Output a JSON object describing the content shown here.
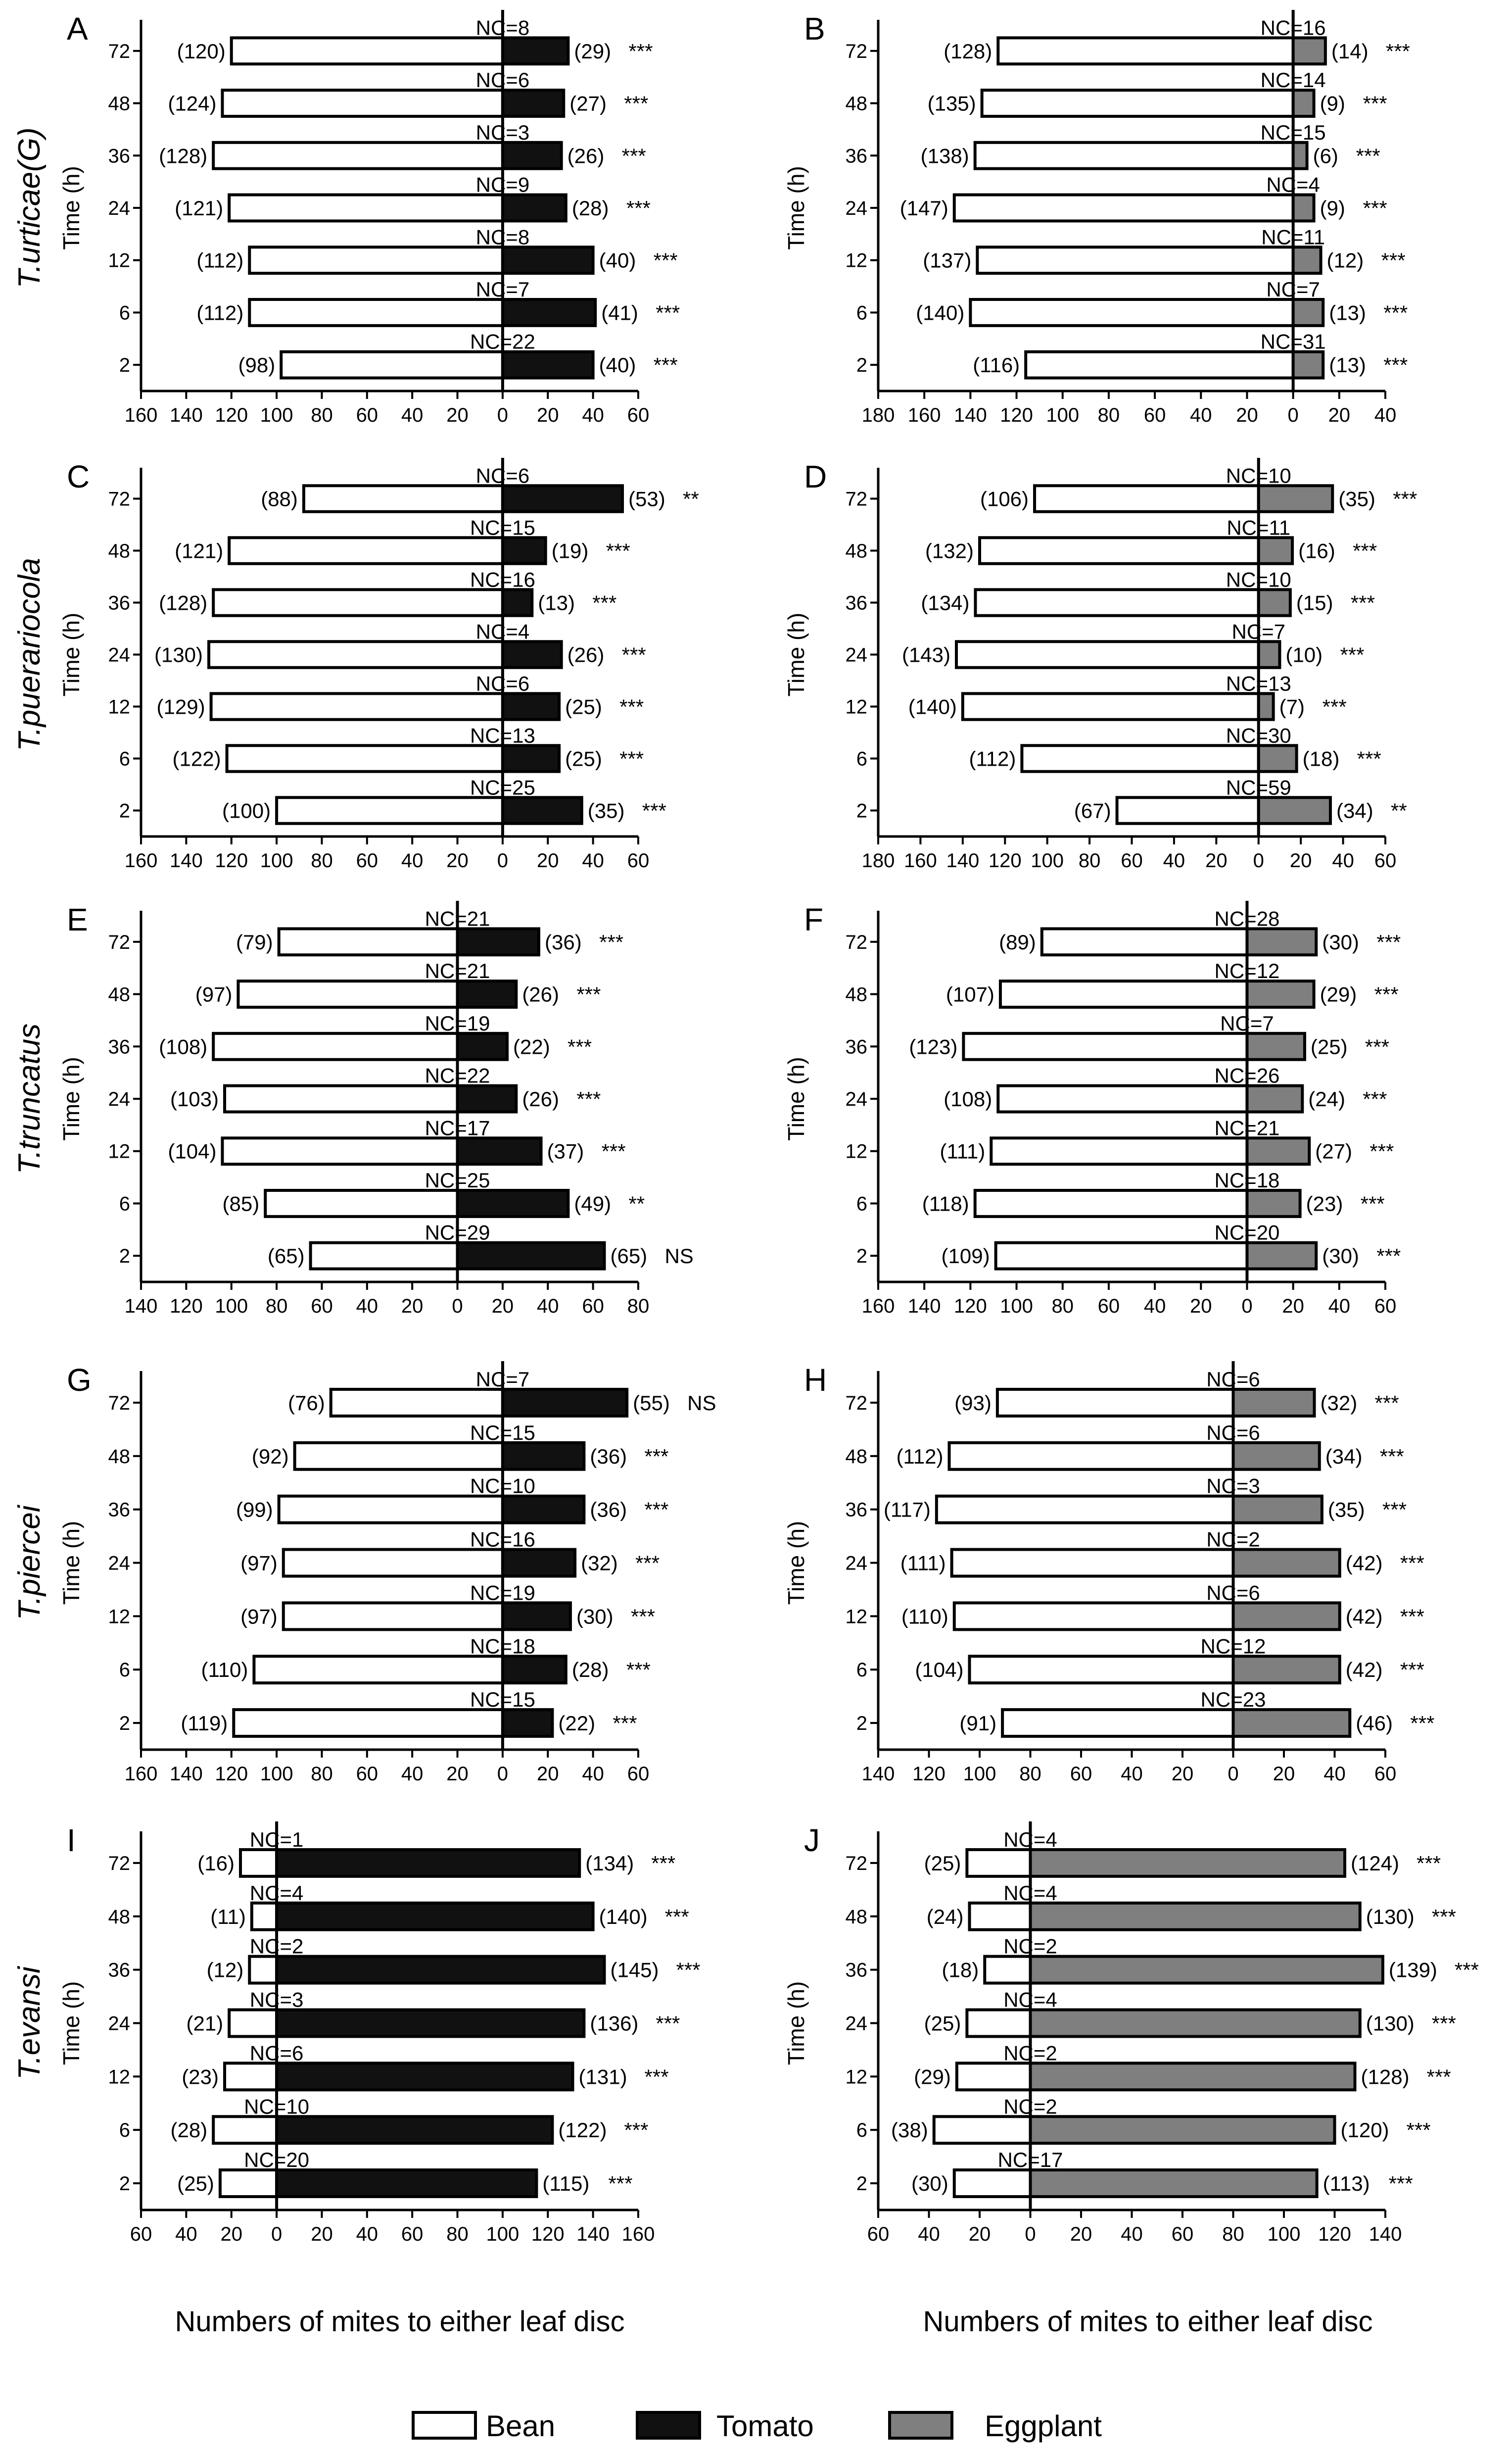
{
  "colors": {
    "Bean": "#ffffff",
    "Tomato": "#111111",
    "Eggplant": "#7f7f7f",
    "stroke": "#000000"
  },
  "legend": {
    "items": [
      "Bean",
      "Tomato",
      "Eggplant"
    ]
  },
  "xaxis_label": "Numbers of mites to either leaf disc",
  "chart_data": [
    {
      "panel": "A",
      "species": "T.urticae(G)",
      "type": "bar",
      "orientation": "horizontal-diverging",
      "ylabel": "Time (h)",
      "categories": [
        "72",
        "48",
        "36",
        "24",
        "12",
        "6",
        "2"
      ],
      "left_series": "Bean",
      "right_series": "Tomato",
      "left_values": [
        120,
        124,
        128,
        121,
        112,
        112,
        98
      ],
      "right_values": [
        29,
        27,
        26,
        28,
        40,
        41,
        40
      ],
      "left_labels": [
        "(120)",
        "(124)",
        "(128)",
        "(121)",
        "(112)",
        "(112)",
        "(98)"
      ],
      "right_labels": [
        "(29)",
        "(27)",
        "(26)",
        "(28)",
        "(40)",
        "(41)",
        "(40)"
      ],
      "sig": [
        "***",
        "***",
        "***",
        "***",
        "***",
        "***",
        "***"
      ],
      "nc": [
        "NC=8",
        "NC=6",
        "NC=3",
        "NC=9",
        "NC=8",
        "NC=7",
        "NC=22"
      ],
      "xlim": [
        -160,
        60
      ],
      "xticks": [
        -160,
        -140,
        -120,
        -100,
        -80,
        -60,
        -40,
        -20,
        0,
        20,
        40,
        60
      ],
      "xtick_labels": [
        "160",
        "140",
        "120",
        "100",
        "80",
        "60",
        "40",
        "20",
        "0",
        "20",
        "40",
        "60"
      ]
    },
    {
      "panel": "B",
      "species": "",
      "type": "bar",
      "orientation": "horizontal-diverging",
      "ylabel": "Time (h)",
      "categories": [
        "72",
        "48",
        "36",
        "24",
        "12",
        "6",
        "2"
      ],
      "left_series": "Bean",
      "right_series": "Eggplant",
      "left_values": [
        128,
        135,
        138,
        147,
        137,
        140,
        116
      ],
      "right_values": [
        14,
        9,
        6,
        9,
        12,
        13,
        13
      ],
      "left_labels": [
        "(128)",
        "(135)",
        "(138)",
        "(147)",
        "(137)",
        "(140)",
        "(116)"
      ],
      "right_labels": [
        "(14)",
        "(9)",
        "(6)",
        "(9)",
        "(12)",
        "(13)",
        "(13)"
      ],
      "sig": [
        "***",
        "***",
        "***",
        "***",
        "***",
        "***",
        "***"
      ],
      "nc": [
        "NC=16",
        "NC=14",
        "NC=15",
        "NC=4",
        "NC=11",
        "NC=7",
        "NC=31"
      ],
      "xlim": [
        -180,
        40
      ],
      "xticks": [
        -180,
        -160,
        -140,
        -120,
        -100,
        -80,
        -60,
        -40,
        -20,
        0,
        20,
        40
      ],
      "xtick_labels": [
        "180",
        "160",
        "140",
        "120",
        "100",
        "80",
        "60",
        "40",
        "20",
        "0",
        "20",
        "40"
      ]
    },
    {
      "panel": "C",
      "species": "T.puerariocola",
      "type": "bar",
      "orientation": "horizontal-diverging",
      "ylabel": "Time (h)",
      "categories": [
        "72",
        "48",
        "36",
        "24",
        "12",
        "6",
        "2"
      ],
      "left_series": "Bean",
      "right_series": "Tomato",
      "left_values": [
        88,
        121,
        128,
        130,
        129,
        122,
        100
      ],
      "right_values": [
        53,
        19,
        13,
        26,
        25,
        25,
        35
      ],
      "left_labels": [
        "(88)",
        "(121)",
        "(128)",
        "(130)",
        "(129)",
        "(122)",
        "(100)"
      ],
      "right_labels": [
        "(53)",
        "(19)",
        "(13)",
        "(26)",
        "(25)",
        "(25)",
        "(35)"
      ],
      "sig": [
        "**",
        "***",
        "***",
        "***",
        "***",
        "***",
        "***"
      ],
      "nc": [
        "NC=6",
        "NC=15",
        "NC=16",
        "NC=4",
        "NC=6",
        "NC=13",
        "NC=25"
      ],
      "xlim": [
        -160,
        60
      ],
      "xticks": [
        -160,
        -140,
        -120,
        -100,
        -80,
        -60,
        -40,
        -20,
        0,
        20,
        40,
        60
      ],
      "xtick_labels": [
        "160",
        "140",
        "120",
        "100",
        "80",
        "60",
        "40",
        "20",
        "0",
        "20",
        "40",
        "60"
      ]
    },
    {
      "panel": "D",
      "species": "",
      "type": "bar",
      "orientation": "horizontal-diverging",
      "ylabel": "Time (h)",
      "categories": [
        "72",
        "48",
        "36",
        "24",
        "12",
        "6",
        "2"
      ],
      "left_series": "Bean",
      "right_series": "Eggplant",
      "left_values": [
        106,
        132,
        134,
        143,
        140,
        112,
        67
      ],
      "right_values": [
        35,
        16,
        15,
        10,
        7,
        18,
        34
      ],
      "left_labels": [
        "(106)",
        "(132)",
        "(134)",
        "(143)",
        "(140)",
        "(112)",
        "(67)"
      ],
      "right_labels": [
        "(35)",
        "(16)",
        "(15)",
        "(10)",
        "(7)",
        "(18)",
        "(34)"
      ],
      "sig": [
        "***",
        "***",
        "***",
        "***",
        "***",
        "***",
        "**"
      ],
      "nc": [
        "NC=10",
        "NC=11",
        "NC=10",
        "NC=7",
        "NC=13",
        "NC=30",
        "NC=59"
      ],
      "xlim": [
        -180,
        60
      ],
      "xticks": [
        -180,
        -160,
        -140,
        -120,
        -100,
        -80,
        -60,
        -40,
        -20,
        0,
        20,
        40,
        60
      ],
      "xtick_labels": [
        "180",
        "160",
        "140",
        "120",
        "100",
        "80",
        "60",
        "40",
        "20",
        "0",
        "20",
        "40",
        "60"
      ]
    },
    {
      "panel": "E",
      "species": "T.truncatus",
      "type": "bar",
      "orientation": "horizontal-diverging",
      "ylabel": "Time (h)",
      "categories": [
        "72",
        "48",
        "36",
        "24",
        "12",
        "6",
        "2"
      ],
      "left_series": "Bean",
      "right_series": "Tomato",
      "left_values": [
        79,
        97,
        108,
        103,
        104,
        85,
        65
      ],
      "right_values": [
        36,
        26,
        22,
        26,
        37,
        49,
        65
      ],
      "left_labels": [
        "(79)",
        "(97)",
        "(108)",
        "(103)",
        "(104)",
        "(85)",
        "(65)"
      ],
      "right_labels": [
        "(36)",
        "(26)",
        "(22)",
        "(26)",
        "(37)",
        "(49)",
        "(65)"
      ],
      "sig": [
        "***",
        "***",
        "***",
        "***",
        "***",
        "**",
        "NS"
      ],
      "nc": [
        "NC=21",
        "NC=21",
        "NC=19",
        "NC=22",
        "NC=17",
        "NC=25",
        "NC=29"
      ],
      "xlim": [
        -140,
        80
      ],
      "xticks": [
        -140,
        -120,
        -100,
        -80,
        -60,
        -40,
        -20,
        0,
        20,
        40,
        60,
        80
      ],
      "xtick_labels": [
        "140",
        "120",
        "100",
        "80",
        "60",
        "40",
        "20",
        "0",
        "20",
        "40",
        "60",
        "80"
      ]
    },
    {
      "panel": "F",
      "species": "",
      "type": "bar",
      "orientation": "horizontal-diverging",
      "ylabel": "Time (h)",
      "categories": [
        "72",
        "48",
        "36",
        "24",
        "12",
        "6",
        "2"
      ],
      "left_series": "Bean",
      "right_series": "Eggplant",
      "left_values": [
        89,
        107,
        123,
        108,
        111,
        118,
        109
      ],
      "right_values": [
        30,
        29,
        25,
        24,
        27,
        23,
        30
      ],
      "left_labels": [
        "(89)",
        "(107)",
        "(123)",
        "(108)",
        "(111)",
        "(118)",
        "(109)"
      ],
      "right_labels": [
        "(30)",
        "(29)",
        "(25)",
        "(24)",
        "(27)",
        "(23)",
        "(30)"
      ],
      "sig": [
        "***",
        "***",
        "***",
        "***",
        "***",
        "***",
        "***"
      ],
      "nc": [
        "NC=28",
        "NC=12",
        "NC=7",
        "NC=26",
        "NC=21",
        "NC=18",
        "NC=20"
      ],
      "xlim": [
        -160,
        60
      ],
      "xticks": [
        -160,
        -140,
        -120,
        -100,
        -80,
        -60,
        -40,
        -20,
        0,
        20,
        40,
        60
      ],
      "xtick_labels": [
        "160",
        "140",
        "120",
        "100",
        "80",
        "60",
        "40",
        "20",
        "0",
        "20",
        "40",
        "60"
      ]
    },
    {
      "panel": "G",
      "species": "T.piercei",
      "type": "bar",
      "orientation": "horizontal-diverging",
      "ylabel": "Time (h)",
      "categories": [
        "72",
        "48",
        "36",
        "24",
        "12",
        "6",
        "2"
      ],
      "left_series": "Bean",
      "right_series": "Tomato",
      "left_values": [
        76,
        92,
        99,
        97,
        97,
        110,
        119
      ],
      "right_values": [
        55,
        36,
        36,
        32,
        30,
        28,
        22
      ],
      "left_labels": [
        "(76)",
        "(92)",
        "(99)",
        "(97)",
        "(97)",
        "(110)",
        "(119)"
      ],
      "right_labels": [
        "(55)",
        "(36)",
        "(36)",
        "(32)",
        "(30)",
        "(28)",
        "(22)"
      ],
      "sig": [
        "NS",
        "***",
        "***",
        "***",
        "***",
        "***",
        "***"
      ],
      "nc": [
        "NC=7",
        "NC=15",
        "NC=10",
        "NC=16",
        "NC=19",
        "NC=18",
        "NC=15"
      ],
      "xlim": [
        -160,
        60
      ],
      "xticks": [
        -160,
        -140,
        -120,
        -100,
        -80,
        -60,
        -40,
        -20,
        0,
        20,
        40,
        60
      ],
      "xtick_labels": [
        "160",
        "140",
        "120",
        "100",
        "80",
        "60",
        "40",
        "20",
        "0",
        "20",
        "40",
        "60"
      ]
    },
    {
      "panel": "H",
      "species": "",
      "type": "bar",
      "orientation": "horizontal-diverging",
      "ylabel": "Time (h)",
      "categories": [
        "72",
        "48",
        "36",
        "24",
        "12",
        "6",
        "2"
      ],
      "left_series": "Bean",
      "right_series": "Eggplant",
      "left_values": [
        93,
        112,
        117,
        111,
        110,
        104,
        91
      ],
      "right_values": [
        32,
        34,
        35,
        42,
        42,
        42,
        46
      ],
      "left_labels": [
        "(93)",
        "(112)",
        "(117)",
        "(111)",
        "(110)",
        "(104)",
        "(91)"
      ],
      "right_labels": [
        "(32)",
        "(34)",
        "(35)",
        "(42)",
        "(42)",
        "(42)",
        "(46)"
      ],
      "sig": [
        "***",
        "***",
        "***",
        "***",
        "***",
        "***",
        "***"
      ],
      "nc": [
        "NC=6",
        "NC=6",
        "NC=3",
        "NC=2",
        "NC=6",
        "NC=12",
        "NC=23"
      ],
      "xlim": [
        -140,
        60
      ],
      "xticks": [
        -140,
        -120,
        -100,
        -80,
        -60,
        -40,
        -20,
        0,
        20,
        40,
        60
      ],
      "xtick_labels": [
        "140",
        "120",
        "100",
        "80",
        "60",
        "40",
        "20",
        "0",
        "20",
        "40",
        "60"
      ]
    },
    {
      "panel": "I",
      "species": "T.evansi",
      "type": "bar",
      "orientation": "horizontal-diverging",
      "ylabel": "Time (h)",
      "categories": [
        "72",
        "48",
        "36",
        "24",
        "12",
        "6",
        "2"
      ],
      "left_series": "Bean",
      "right_series": "Tomato",
      "left_values": [
        16,
        11,
        12,
        21,
        23,
        28,
        25
      ],
      "right_values": [
        134,
        140,
        145,
        136,
        131,
        122,
        115
      ],
      "left_labels": [
        "(16)",
        "(11)",
        "(12)",
        "(21)",
        "(23)",
        "(28)",
        "(25)"
      ],
      "right_labels": [
        "(134)",
        "(140)",
        "(145)",
        "(136)",
        "(131)",
        "(122)",
        "(115)"
      ],
      "sig": [
        "***",
        "***",
        "***",
        "***",
        "***",
        "***",
        "***"
      ],
      "nc": [
        "NC=1",
        "NC=4",
        "NC=2",
        "NC=3",
        "NC=6",
        "NC=10",
        "NC=20"
      ],
      "xlim": [
        -60,
        160
      ],
      "xticks": [
        -60,
        -40,
        -20,
        0,
        20,
        40,
        60,
        80,
        100,
        120,
        140,
        160
      ],
      "xtick_labels": [
        "60",
        "40",
        "20",
        "0",
        "20",
        "40",
        "60",
        "80",
        "100",
        "120",
        "140",
        "160"
      ]
    },
    {
      "panel": "J",
      "species": "",
      "type": "bar",
      "orientation": "horizontal-diverging",
      "ylabel": "Time (h)",
      "categories": [
        "72",
        "48",
        "36",
        "24",
        "12",
        "6",
        "2"
      ],
      "left_series": "Bean",
      "right_series": "Eggplant",
      "left_values": [
        25,
        24,
        18,
        25,
        29,
        38,
        30
      ],
      "right_values": [
        124,
        130,
        139,
        130,
        128,
        120,
        113
      ],
      "left_labels": [
        "(25)",
        "(24)",
        "(18)",
        "(25)",
        "(29)",
        "(38)",
        "(30)"
      ],
      "right_labels": [
        "(124)",
        "(130)",
        "(139)",
        "(130)",
        "(128)",
        "(120)",
        "(113)"
      ],
      "sig": [
        "***",
        "***",
        "***",
        "***",
        "***",
        "***",
        "***"
      ],
      "nc": [
        "NC=4",
        "NC=4",
        "NC=2",
        "NC=4",
        "NC=2",
        "NC=2",
        "NC=17"
      ],
      "xlim": [
        -60,
        140
      ],
      "xticks": [
        -60,
        -40,
        -20,
        0,
        20,
        40,
        60,
        80,
        100,
        120,
        140
      ],
      "xtick_labels": [
        "60",
        "40",
        "20",
        "0",
        "20",
        "40",
        "60",
        "80",
        "100",
        "120",
        "140"
      ]
    }
  ]
}
